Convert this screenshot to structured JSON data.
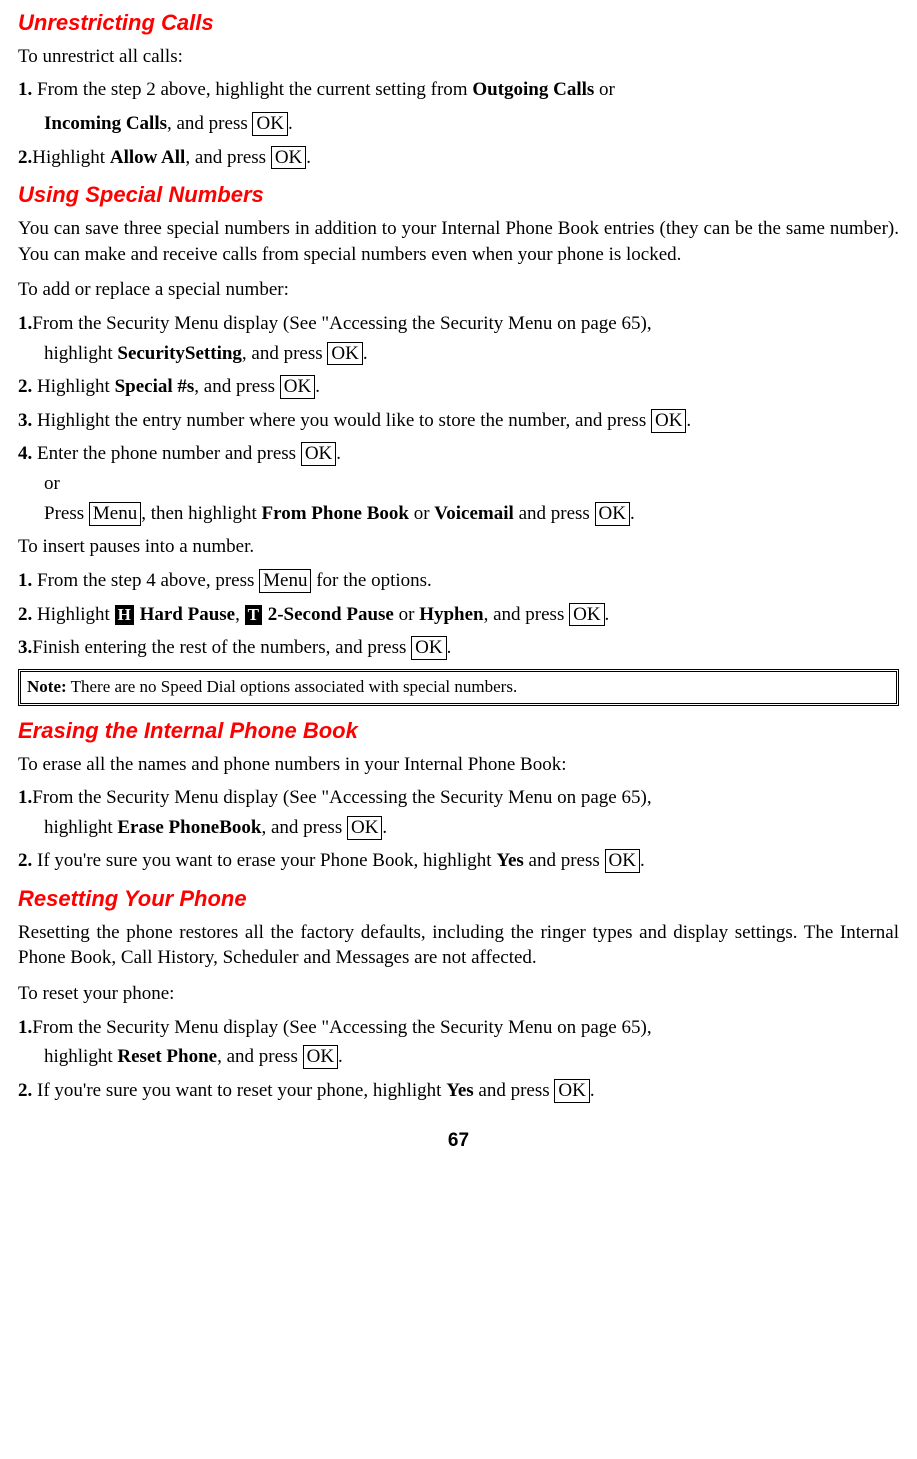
{
  "sec1": {
    "title": "Unrestricting Calls",
    "intro": "To unrestrict all calls:",
    "s1a": "1.",
    "s1b_pre": " From the step 2 above, highlight the current setting from ",
    "s1b_bold1": "Outgoing Calls",
    "s1b_mid": " or",
    "s1c_bold": "Incoming Calls",
    "s1c_mid": ", and press ",
    "s1c_key": "OK",
    "s1c_end": ".",
    "s2a": "2.",
    "s2b_pre": "Highlight ",
    "s2b_bold": "Allow All",
    "s2b_mid": ", and press ",
    "s2b_key": "OK",
    "s2b_end": "."
  },
  "sec2": {
    "title": "Using Special Numbers",
    "body": "You can save three special numbers in addition to your Internal Phone Book entries (they can be the same number). You can make and receive calls from special numbers even when your phone is locked.",
    "intro2": "To add or replace a special number:",
    "s1a": "1.",
    "s1b": "From the Security Menu display (See \"Accessing the Security Menu on page 65),",
    "s1c_pre": "highlight ",
    "s1c_bold": "SecuritySetting",
    "s1c_mid": ", and press ",
    "s1c_key": "OK",
    "s1c_end": ".",
    "s2a": "2.",
    "s2b_pre": " Highlight ",
    "s2b_bold": "Special #s",
    "s2b_mid": ", and press ",
    "s2b_key": "OK",
    "s2b_end": ".",
    "s3a": "3.",
    "s3b_pre": " Highlight the entry number where you would like to store the number, and press ",
    "s3b_key": "OK",
    "s3b_end": ".",
    "s4a": "4.",
    "s4b_pre": " Enter the phone number and press ",
    "s4b_key": "OK",
    "s4b_end": ".",
    "s4or": "or",
    "s4p_pre": "Press ",
    "s4p_key1": "Menu",
    "s4p_mid1": ", then highlight ",
    "s4p_bold1": "From Phone Book",
    "s4p_mid2": " or ",
    "s4p_bold2": "Voicemail",
    "s4p_mid3": " and press ",
    "s4p_key2": "OK",
    "s4p_end": ".",
    "intro3": "To insert pauses into a number.",
    "p1a": "1.",
    "p1b_pre": " From the step 4 above, press ",
    "p1b_key": "Menu",
    "p1b_end": " for the options.",
    "p2a": "2.",
    "p2b_pre": " Highlight ",
    "p2b_hh": "H",
    "p2b_bold1": " Hard Pause",
    "p2b_mid1": ", ",
    "p2b_ht": "T",
    "p2b_bold2": " 2-Second Pause",
    "p2b_mid2": " or ",
    "p2b_bold3": "Hyphen",
    "p2b_mid3": ", and press ",
    "p2b_key": "OK",
    "p2b_end": ".",
    "p3a": "3.",
    "p3b_pre": "Finish entering the rest of the numbers, and press ",
    "p3b_key": "OK",
    "p3b_end": ".",
    "note_label": "Note:",
    "note_body": " There are no Speed Dial options associated with special numbers."
  },
  "sec3": {
    "title": "Erasing the Internal Phone Book",
    "body": "To erase all the names and phone numbers in your Internal Phone Book:",
    "s1a": "1.",
    "s1b": "From the Security Menu display (See \"Accessing the Security Menu on page 65),",
    "s1c_pre": "highlight ",
    "s1c_bold": "Erase PhoneBook",
    "s1c_mid": ", and press ",
    "s1c_key": "OK",
    "s1c_end": ".",
    "s2a": "2.",
    "s2b_pre": " If you're sure you want to erase your Phone Book, highlight ",
    "s2b_bold": "Yes",
    "s2b_mid": " and press ",
    "s2b_key": "OK",
    "s2b_end": "."
  },
  "sec4": {
    "title": "Resetting Your Phone",
    "body": "Resetting the phone restores all the factory defaults, including the ringer types and display settings. The Internal Phone Book, Call History, Scheduler and Messages are not affected.",
    "intro": "To reset your phone:",
    "s1a": "1.",
    "s1b": "From the Security Menu display (See \"Accessing the Security Menu on page 65),",
    "s1c_pre": "highlight ",
    "s1c_bold": "Reset Phone",
    "s1c_mid": ", and press ",
    "s1c_key": "OK",
    "s1c_end": ".",
    "s2a": "2.",
    "s2b_pre": " If you're sure you want to reset your phone, highlight ",
    "s2b_bold": "Yes",
    "s2b_mid": " and press ",
    "s2b_key": "OK",
    "s2b_end": "."
  },
  "pagenum": "67"
}
